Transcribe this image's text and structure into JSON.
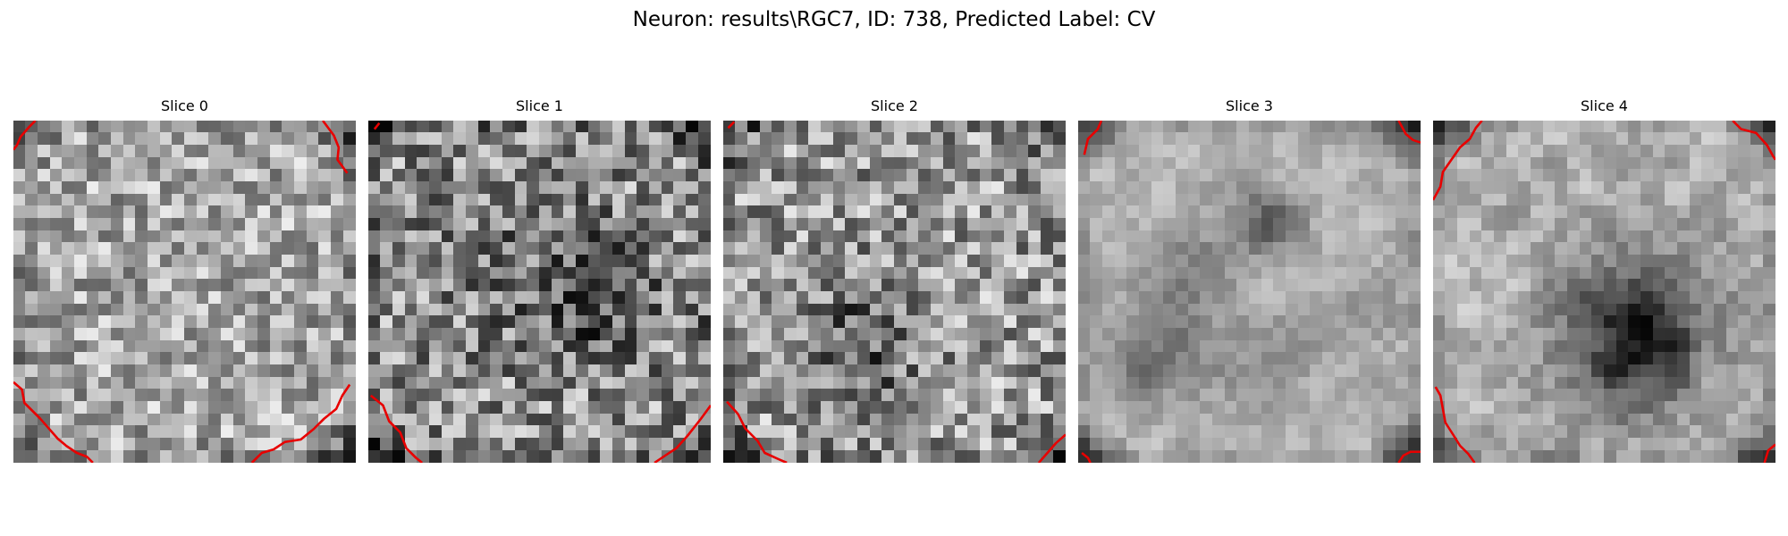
{
  "figure": {
    "title": "Neuron: results\\RGC7, ID: 738, Predicted Label: CV",
    "contour_color": "#e80000"
  },
  "panels": [
    {
      "title": "Slice 0"
    },
    {
      "title": "Slice 1"
    },
    {
      "title": "Slice 2"
    },
    {
      "title": "Slice 3"
    },
    {
      "title": "Slice 4"
    }
  ]
}
